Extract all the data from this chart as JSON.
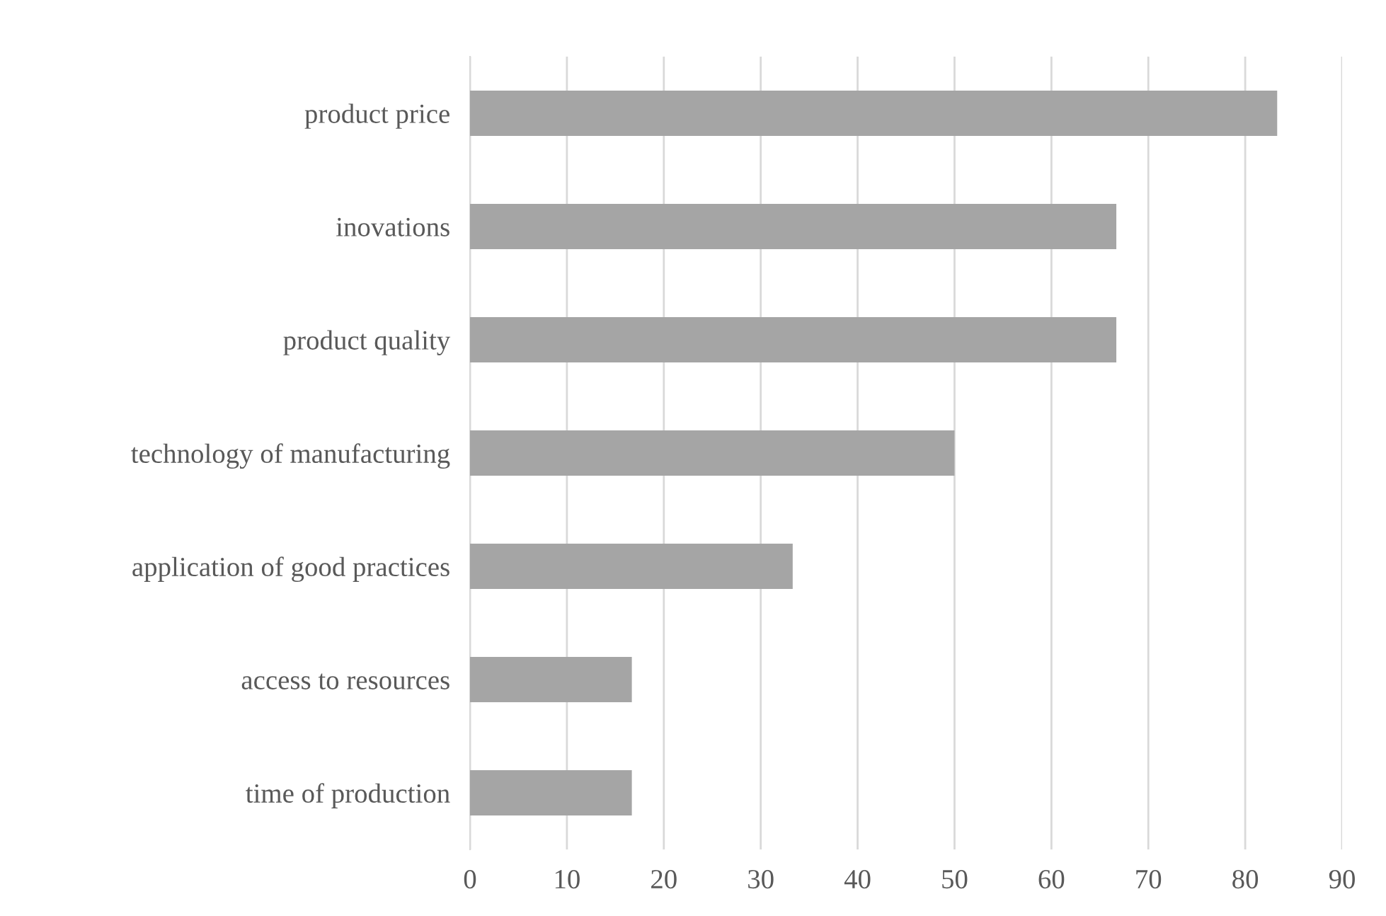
{
  "chart_data": {
    "type": "bar",
    "orientation": "horizontal",
    "categories": [
      "product price",
      "inovations",
      "product quality",
      "technology of manufacturing",
      "application of good practices",
      "access to resources",
      "time of production"
    ],
    "values": [
      83.3,
      66.7,
      66.7,
      50,
      33.3,
      16.7,
      16.7
    ],
    "color": "#a5a5a5",
    "xlim": [
      0,
      90
    ],
    "xticks": [
      0,
      10,
      20,
      30,
      40,
      50,
      60,
      70,
      80,
      90
    ],
    "grid": "x",
    "legend": false
  }
}
